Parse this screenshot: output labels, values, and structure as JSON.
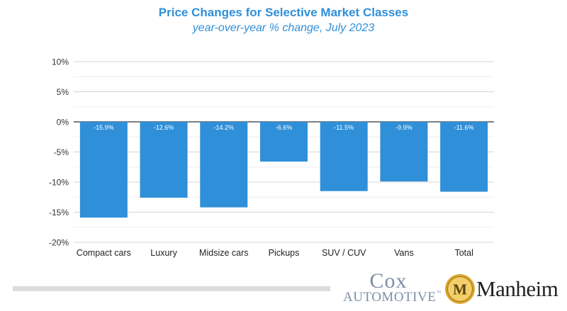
{
  "chart_data": {
    "type": "bar",
    "title": "Price Changes for Selective Market Classes",
    "subtitle": "year-over-year % change, July 2023",
    "xlabel": "",
    "ylabel": "",
    "categories": [
      "Compact cars",
      "Luxury",
      "Midsize cars",
      "Pickups",
      "SUV / CUV",
      "Vans",
      "Total"
    ],
    "values": [
      -15.9,
      -12.6,
      -14.2,
      -6.6,
      -11.5,
      -9.9,
      -11.6
    ],
    "data_labels": [
      "-15.9%",
      "-12.6%",
      "-14.2%",
      "-6.6%",
      "-11.5%",
      "-9.9%",
      "-11.6%"
    ],
    "ylim": [
      -20,
      10
    ],
    "yticks": [
      10,
      5,
      0,
      -5,
      -10,
      -15,
      -20
    ],
    "ytick_labels": [
      "10%",
      "5%",
      "0%",
      "-5%",
      "-10%",
      "-15%",
      "-20%"
    ],
    "minor_gridlines": [
      7.5,
      2.5,
      -2.5,
      -7.5,
      -12.5,
      -17.5
    ],
    "grid": true,
    "bar_color": "#2f8fd8",
    "label_color": "#ffffff"
  },
  "branding": {
    "cox_line1": "Cox",
    "cox_line2": "AUTOMOTIVE",
    "cox_tm": "™",
    "manheim_letter": "M",
    "manheim_text": "Manheim",
    "manheim_gold": "#d9a52b",
    "cox_color": "#7d8fa6"
  }
}
